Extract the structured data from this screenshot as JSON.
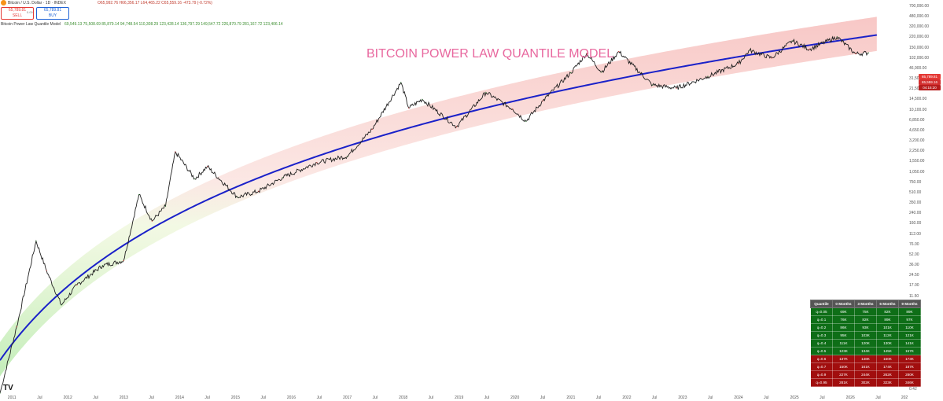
{
  "header": {
    "symbol_line": "Bitcoin / U.S. Dollar · 1D · INDEX",
    "ohlc": "O65,992.76 H66,356.17 L64,465.22 C65,559.16 -473.79 (-0.72%)",
    "sell_price": "65,789.81",
    "sell_label": "SELL",
    "spread": "0.00",
    "buy_price": "65,789.81",
    "buy_label": "BUY",
    "indicator_name": "Bitcoin Power Law Quantile Model",
    "indicator_values": "69,549.13  75,508.69  85,879.14  94,748.54  110,308.29  123,428.14  136,797.29  149,547.72  226,870.79  281,167.72  123,406.14"
  },
  "colors": {
    "price_line": "#1f1f1f",
    "median_line": "#1a21c9",
    "band_upper": "#f4a3a0",
    "band_lower": "#b6eaa8",
    "title": "#e8679e",
    "table_green": "#0e6e17",
    "table_red": "#a10e0e"
  },
  "chart_data": {
    "type": "line",
    "title": "BITCOIN POWER LAW QUANTILE MODEL",
    "y_scale": "log",
    "ylim": [
      0.06,
      500000
    ],
    "xlim": [
      "2010-10-15",
      "2026-12-31"
    ],
    "grid": false,
    "y_ticks": [
      "700,000.00",
      "480,000.00",
      "320,000.00",
      "220,000.00",
      "150,000.00",
      "102,000.00",
      "46,900.00",
      "31,500.00",
      "21,500.00",
      "14,500.00",
      "10,100.00",
      "6,850.00",
      "4,650.00",
      "3,200.00",
      "2,250.00",
      "1,550.00",
      "1,050.00",
      "750.00",
      "510.00",
      "350.00",
      "240.00",
      "160.00",
      "112.00",
      "76.00",
      "52.00",
      "36.00",
      "24.50",
      "17.00",
      "11.50",
      "8.00",
      "5.40",
      "3.80",
      "2.60",
      "1.80",
      "1.25",
      "0.87",
      "0.61",
      "0.42"
    ],
    "x_ticks": [
      {
        "label": "2011",
        "date": "2011-01-01"
      },
      {
        "label": "Jul",
        "date": "2011-07-01"
      },
      {
        "label": "2012",
        "date": "2012-01-01"
      },
      {
        "label": "Jul",
        "date": "2012-07-01"
      },
      {
        "label": "2013",
        "date": "2013-01-01"
      },
      {
        "label": "Jul",
        "date": "2013-07-01"
      },
      {
        "label": "2014",
        "date": "2014-01-01"
      },
      {
        "label": "Jul",
        "date": "2014-07-01"
      },
      {
        "label": "2015",
        "date": "2015-01-01"
      },
      {
        "label": "Jul",
        "date": "2015-07-01"
      },
      {
        "label": "2016",
        "date": "2016-01-01"
      },
      {
        "label": "Jul",
        "date": "2016-07-01"
      },
      {
        "label": "2017",
        "date": "2017-01-01"
      },
      {
        "label": "Jul",
        "date": "2017-07-01"
      },
      {
        "label": "2018",
        "date": "2018-01-01"
      },
      {
        "label": "Jul",
        "date": "2018-07-01"
      },
      {
        "label": "2019",
        "date": "2019-01-01"
      },
      {
        "label": "Jul",
        "date": "2019-07-01"
      },
      {
        "label": "2020",
        "date": "2020-01-01"
      },
      {
        "label": "Jul",
        "date": "2020-07-01"
      },
      {
        "label": "2021",
        "date": "2021-01-01"
      },
      {
        "label": "Jul",
        "date": "2021-07-01"
      },
      {
        "label": "2022",
        "date": "2022-01-01"
      },
      {
        "label": "Jul",
        "date": "2022-07-01"
      },
      {
        "label": "2023",
        "date": "2023-01-01"
      },
      {
        "label": "Jul",
        "date": "2023-07-01"
      },
      {
        "label": "2024",
        "date": "2024-01-01"
      },
      {
        "label": "Jul",
        "date": "2024-07-01"
      },
      {
        "label": "2025",
        "date": "2025-01-01"
      },
      {
        "label": "Jul",
        "date": "2025-07-01"
      },
      {
        "label": "2026",
        "date": "2026-01-01"
      },
      {
        "label": "Jul",
        "date": "2026-07-01"
      },
      {
        "label": "202",
        "date": "2027-01-01"
      }
    ],
    "price_series": [
      {
        "date": "2010-10-15",
        "value": 0.06
      },
      {
        "date": "2011-02-01",
        "value": 0.9
      },
      {
        "date": "2011-06-08",
        "value": 30
      },
      {
        "date": "2011-08-15",
        "value": 9
      },
      {
        "date": "2011-11-20",
        "value": 2.2
      },
      {
        "date": "2012-03-01",
        "value": 5
      },
      {
        "date": "2012-08-15",
        "value": 11
      },
      {
        "date": "2012-12-31",
        "value": 13.5
      },
      {
        "date": "2013-04-10",
        "value": 200
      },
      {
        "date": "2013-07-05",
        "value": 68
      },
      {
        "date": "2013-10-01",
        "value": 125
      },
      {
        "date": "2013-12-04",
        "value": 1150
      },
      {
        "date": "2014-04-10",
        "value": 380
      },
      {
        "date": "2014-07-01",
        "value": 630
      },
      {
        "date": "2015-01-14",
        "value": 180
      },
      {
        "date": "2015-06-01",
        "value": 230
      },
      {
        "date": "2015-11-04",
        "value": 400
      },
      {
        "date": "2016-06-16",
        "value": 740
      },
      {
        "date": "2016-12-31",
        "value": 960
      },
      {
        "date": "2017-06-12",
        "value": 2900
      },
      {
        "date": "2017-12-17",
        "value": 19500
      },
      {
        "date": "2018-02-06",
        "value": 6900
      },
      {
        "date": "2018-05-05",
        "value": 9800
      },
      {
        "date": "2018-12-15",
        "value": 3200
      },
      {
        "date": "2019-06-26",
        "value": 13000
      },
      {
        "date": "2019-12-17",
        "value": 6600
      },
      {
        "date": "2020-03-13",
        "value": 4000
      },
      {
        "date": "2020-07-01",
        "value": 9200
      },
      {
        "date": "2020-12-31",
        "value": 29000
      },
      {
        "date": "2021-04-14",
        "value": 64000
      },
      {
        "date": "2021-07-20",
        "value": 29800
      },
      {
        "date": "2021-11-10",
        "value": 69000
      },
      {
        "date": "2022-06-18",
        "value": 17600
      },
      {
        "date": "2022-11-21",
        "value": 15500
      },
      {
        "date": "2023-06-15",
        "value": 25000
      },
      {
        "date": "2023-12-31",
        "value": 42300
      },
      {
        "date": "2024-03-14",
        "value": 73000
      },
      {
        "date": "2024-08-05",
        "value": 53000
      },
      {
        "date": "2024-12-17",
        "value": 107000
      },
      {
        "date": "2025-04-08",
        "value": 76000
      },
      {
        "date": "2025-10-06",
        "value": 126000
      },
      {
        "date": "2026-02-05",
        "value": 63000
      },
      {
        "date": "2026-04-30",
        "value": 65559
      }
    ],
    "quantile_table": {
      "columns": [
        "Quantile",
        "0 Months",
        "3 Months",
        "6 Months",
        "9 Months"
      ],
      "rows": [
        {
          "q": "q=0.05",
          "v": [
            "69K",
            "75K",
            "82K",
            "89K"
          ],
          "tone": "green"
        },
        {
          "q": "q=0.1",
          "v": [
            "76K",
            "82K",
            "89K",
            "97K"
          ],
          "tone": "green"
        },
        {
          "q": "q=0.2",
          "v": [
            "86K",
            "93K",
            "101K",
            "110K"
          ],
          "tone": "green"
        },
        {
          "q": "q=0.3",
          "v": [
            "95K",
            "103K",
            "112K",
            "121K"
          ],
          "tone": "green"
        },
        {
          "q": "q=0.4",
          "v": [
            "111K",
            "120K",
            "130K",
            "141K"
          ],
          "tone": "green"
        },
        {
          "q": "q=0.5",
          "v": [
            "123K",
            "134K",
            "145K",
            "157K"
          ],
          "tone": "green"
        },
        {
          "q": "q=0.6",
          "v": [
            "137K",
            "148K",
            "160K",
            "173K"
          ],
          "tone": "red"
        },
        {
          "q": "q=0.7",
          "v": [
            "150K",
            "161K",
            "174K",
            "187K"
          ],
          "tone": "red"
        },
        {
          "q": "q=0.9",
          "v": [
            "227K",
            "244K",
            "262K",
            "280K"
          ],
          "tone": "red"
        },
        {
          "q": "q=0.95",
          "v": [
            "281K",
            "302K",
            "323K",
            "346K"
          ],
          "tone": "red"
        }
      ]
    },
    "price_tags": [
      "65,789.81",
      "65,559.16",
      "04:15:20"
    ]
  }
}
